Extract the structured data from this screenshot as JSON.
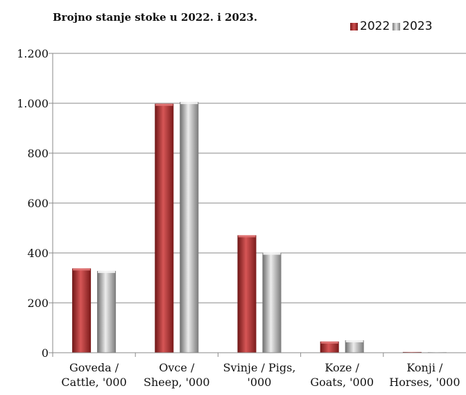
{
  "chart_data": {
    "type": "bar",
    "title": "Brojno stanje stoke u 2022. i 2023.",
    "categories": [
      [
        "Goveda /",
        "Cattle, '000"
      ],
      [
        "Ovce /",
        "Sheep, '000"
      ],
      [
        "Svinje / Pigs,",
        "'000"
      ],
      [
        "Koze /",
        "Goats, '000"
      ],
      [
        "Konji /",
        "Horses, '000"
      ]
    ],
    "series": [
      {
        "name": "2022",
        "values": [
          338,
          998,
          471,
          45,
          3
        ],
        "color": "#b5302f"
      },
      {
        "name": "2023",
        "values": [
          328,
          1005,
          401,
          50,
          2
        ],
        "color": "#a8a8a8"
      }
    ],
    "ylim": [
      0,
      1200
    ],
    "yticks": [
      0,
      200,
      400,
      600,
      800,
      1000,
      1200
    ],
    "ytick_labels": [
      "0",
      "200",
      "400",
      "600",
      "800",
      "1.000",
      "1.200"
    ],
    "grid": true,
    "legend_position": "top-right"
  }
}
